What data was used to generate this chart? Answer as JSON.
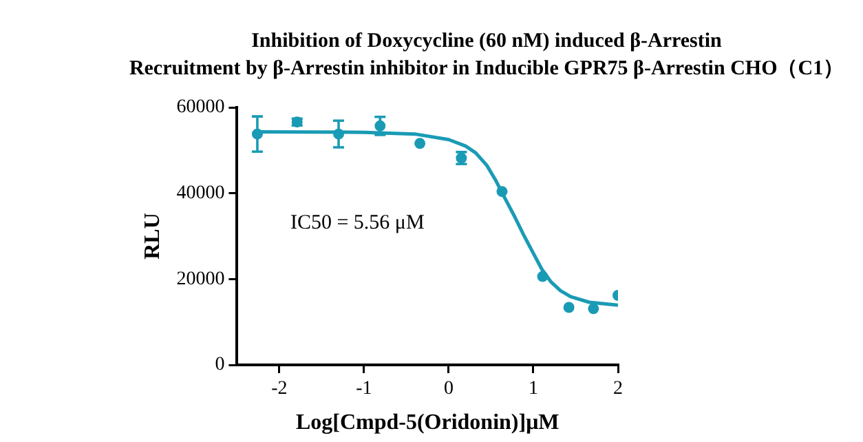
{
  "chart_data": {
    "type": "scatter",
    "title": "Inhibition of Doxycycline (60 nM) induced β-Arrestin\nRecruitment by β-Arrestin inhibitor in Inducible GPR75 β-Arrestin CHO（C1）",
    "xlabel": "Log[Cmpd-5(Oridonin)]μM",
    "ylabel": "RLU",
    "annotations": [
      "IC50 = 5.56 μM"
    ],
    "xlim": [
      -2.5,
      2
    ],
    "xticks": [
      -2,
      -1,
      0,
      1,
      2
    ],
    "ylim": [
      0,
      60000
    ],
    "yticks": [
      0,
      20000,
      40000,
      60000
    ],
    "grid": false,
    "legend": false,
    "marker": "circle",
    "series": [
      {
        "color": "#1a9bb5",
        "x": [
          -2.26,
          -1.79,
          -1.3,
          -0.81,
          -0.34,
          0.15,
          0.63,
          1.11,
          1.42,
          1.71,
          2.0
        ],
        "values": [
          53800,
          56600,
          53800,
          55700,
          51600,
          48200,
          40400,
          20600,
          13400,
          13100,
          16200
        ],
        "errors": [
          4100,
          800,
          3100,
          2100,
          null,
          1400,
          null,
          null,
          null,
          null,
          null
        ]
      },
      {
        "type": "line",
        "color": "#1a9bb5",
        "marker": "none",
        "line_style": "solid",
        "x": [
          -2.26,
          -1,
          -0.4,
          0,
          0.2,
          0.32,
          0.45,
          0.55,
          0.66,
          0.77,
          0.88,
          1.0,
          1.1,
          1.21,
          1.32,
          1.44,
          1.66,
          2.0
        ],
        "values": [
          54300,
          54200,
          53800,
          52500,
          51000,
          49400,
          46500,
          43200,
          39000,
          34900,
          30500,
          26000,
          22300,
          19300,
          17300,
          15900,
          14600,
          13900
        ]
      }
    ]
  }
}
